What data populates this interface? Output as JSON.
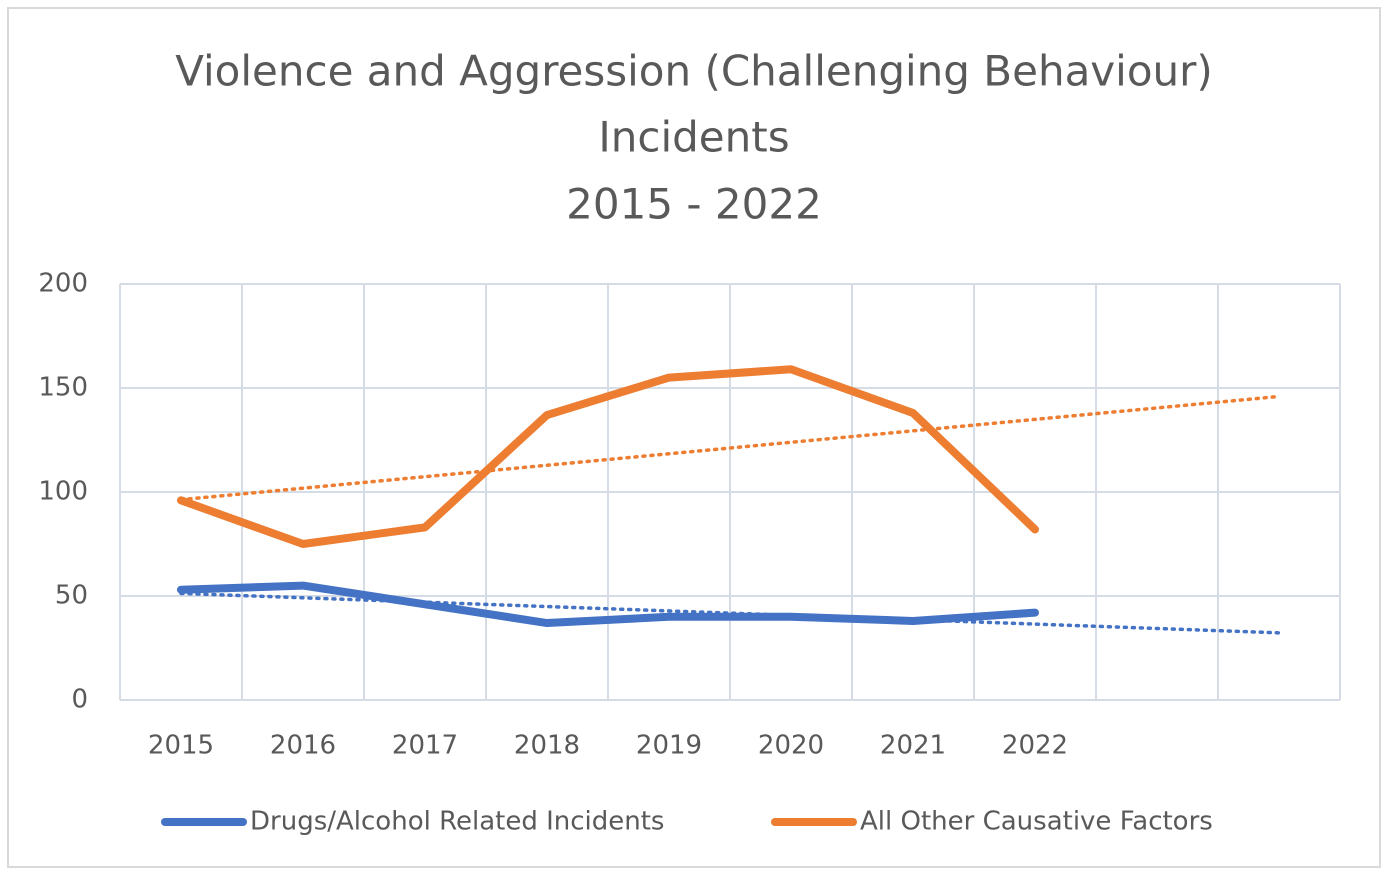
{
  "chart_data": {
    "type": "line",
    "title": [
      "Violence and Aggression (Challenging Behaviour)",
      "Incidents",
      "2015 - 2022"
    ],
    "categories": [
      "2015",
      "2016",
      "2017",
      "2018",
      "2019",
      "2020",
      "2021",
      "2022",
      null,
      null
    ],
    "series": [
      {
        "name": "Drugs/Alcohol Related Incidents",
        "color": "#4472c4",
        "values": [
          53,
          55,
          46,
          37,
          40,
          40,
          38,
          42,
          null,
          null
        ]
      },
      {
        "name": "All Other Causative Factors",
        "color": "#ed7d31",
        "values": [
          96,
          75,
          83,
          137,
          155,
          159,
          138,
          82,
          null,
          null
        ]
      }
    ],
    "ylim": [
      0,
      200
    ],
    "yticks": [
      0,
      50,
      100,
      150,
      200
    ],
    "grid": true,
    "trendline": "linear",
    "legend": "bottom"
  }
}
